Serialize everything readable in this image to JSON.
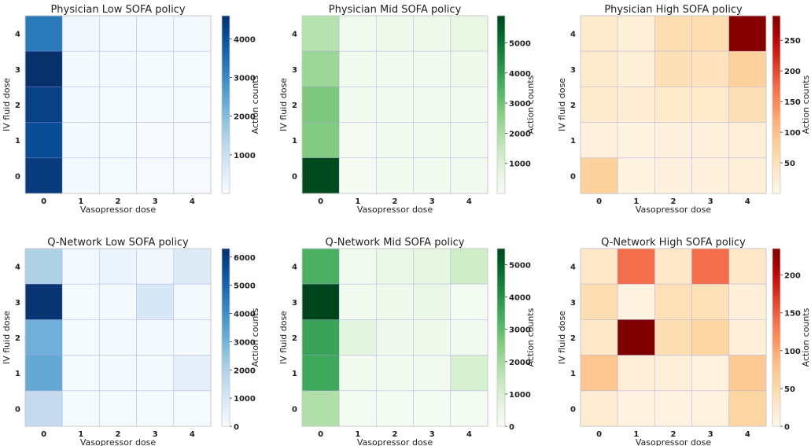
{
  "chart_data": [
    {
      "type": "heatmap",
      "title": "Physician Low SOFA policy",
      "xlabel": "Vasopressor dose",
      "ylabel": "IV fluid dose",
      "x_categories": [
        "0",
        "1",
        "2",
        "3",
        "4"
      ],
      "y_categories": [
        "4",
        "3",
        "2",
        "1",
        "0"
      ],
      "colorbar_label": "Action counts",
      "colormap": "Blues",
      "vmin": 0,
      "vmax": 4600,
      "colorbar_ticks": [
        "1000",
        "2000",
        "3000",
        "4000"
      ],
      "values": [
        [
          3300,
          120,
          80,
          60,
          60
        ],
        [
          4600,
          80,
          60,
          40,
          40
        ],
        [
          4300,
          70,
          50,
          40,
          40
        ],
        [
          4100,
          60,
          40,
          30,
          30
        ],
        [
          4400,
          60,
          40,
          30,
          30
        ]
      ]
    },
    {
      "type": "heatmap",
      "title": "Physician Mid SOFA policy",
      "xlabel": "Vasopressor dose",
      "ylabel": "IV fluid dose",
      "x_categories": [
        "0",
        "1",
        "2",
        "3",
        "4"
      ],
      "y_categories": [
        "4",
        "3",
        "2",
        "1",
        "0"
      ],
      "colorbar_label": "Action counts",
      "colormap": "Greens",
      "vmin": 0,
      "vmax": 5900,
      "colorbar_ticks": [
        "1000",
        "2000",
        "3000",
        "4000",
        "5000"
      ],
      "values": [
        [
          1800,
          200,
          300,
          350,
          600
        ],
        [
          2300,
          150,
          200,
          250,
          300
        ],
        [
          2800,
          150,
          200,
          200,
          250
        ],
        [
          2700,
          100,
          150,
          200,
          200
        ],
        [
          5800,
          100,
          150,
          150,
          200
        ]
      ]
    },
    {
      "type": "heatmap",
      "title": "Physician High SOFA policy",
      "xlabel": "Vasopressor dose",
      "ylabel": "IV fluid dose",
      "x_categories": [
        "0",
        "1",
        "2",
        "3",
        "4"
      ],
      "y_categories": [
        "4",
        "3",
        "2",
        "1",
        "0"
      ],
      "colorbar_label": "Action counts",
      "colormap": "OrRd",
      "vmin": 0,
      "vmax": 290,
      "colorbar_ticks": [
        "50",
        "100",
        "150",
        "200",
        "250"
      ],
      "values": [
        [
          30,
          20,
          55,
          55,
          285
        ],
        [
          30,
          20,
          50,
          45,
          75
        ],
        [
          30,
          25,
          35,
          35,
          50
        ],
        [
          15,
          10,
          15,
          15,
          20
        ],
        [
          75,
          10,
          15,
          15,
          20
        ]
      ]
    },
    {
      "type": "heatmap",
      "title": "Q-Network Low SOFA policy",
      "xlabel": "Vasopressor dose",
      "ylabel": "IV fluid dose",
      "x_categories": [
        "0",
        "1",
        "2",
        "3",
        "4"
      ],
      "y_categories": [
        "4",
        "3",
        "2",
        "1",
        "0"
      ],
      "colorbar_label": "Action counts",
      "colormap": "Blues",
      "vmin": 0,
      "vmax": 6300,
      "colorbar_ticks": [
        "0",
        "1000",
        "2000",
        "3000",
        "4000",
        "5000",
        "6000"
      ],
      "values": [
        [
          2000,
          100,
          300,
          150,
          800
        ],
        [
          6200,
          50,
          100,
          1000,
          100
        ],
        [
          3100,
          50,
          100,
          100,
          100
        ],
        [
          3300,
          50,
          100,
          100,
          600
        ],
        [
          1600,
          50,
          50,
          50,
          50
        ]
      ]
    },
    {
      "type": "heatmap",
      "title": "Q-Network Mid SOFA policy",
      "xlabel": "Vasopressor dose",
      "ylabel": "IV fluid dose",
      "x_categories": [
        "0",
        "1",
        "2",
        "3",
        "4"
      ],
      "y_categories": [
        "4",
        "3",
        "2",
        "1",
        "0"
      ],
      "colorbar_label": "Action counts",
      "colormap": "Greens",
      "vmin": 0,
      "vmax": 5500,
      "colorbar_ticks": [
        "0",
        "1000",
        "2000",
        "3000",
        "4000",
        "5000"
      ],
      "values": [
        [
          3300,
          200,
          450,
          600,
          1200
        ],
        [
          5500,
          150,
          300,
          450,
          100
        ],
        [
          3600,
          700,
          250,
          300,
          150
        ],
        [
          3500,
          200,
          150,
          200,
          1000
        ],
        [
          1800,
          100,
          100,
          100,
          100
        ]
      ]
    },
    {
      "type": "heatmap",
      "title": "Q-Network High SOFA policy",
      "xlabel": "Vasopressor dose",
      "ylabel": "IV fluid dose",
      "x_categories": [
        "0",
        "1",
        "2",
        "3",
        "4"
      ],
      "y_categories": [
        "4",
        "3",
        "2",
        "1",
        "0"
      ],
      "colorbar_label": "Action counts",
      "colormap": "OrRd",
      "vmin": 0,
      "vmax": 235,
      "colorbar_ticks": [
        "0",
        "50",
        "100",
        "150",
        "200"
      ],
      "values": [
        [
          30,
          140,
          30,
          140,
          30
        ],
        [
          45,
          10,
          40,
          40,
          15
        ],
        [
          30,
          235,
          45,
          55,
          15
        ],
        [
          75,
          15,
          15,
          10,
          70
        ],
        [
          20,
          10,
          10,
          10,
          55
        ]
      ]
    }
  ],
  "colors": {
    "Blues": [
      "#f7fbff",
      "#deebf7",
      "#c6dbef",
      "#9ecae1",
      "#6baed6",
      "#4292c6",
      "#2171b5",
      "#08519c",
      "#08306b"
    ],
    "Greens": [
      "#f7fcf5",
      "#e5f5e0",
      "#c7e9c0",
      "#a1d99b",
      "#74c476",
      "#41ab5d",
      "#238b45",
      "#006d2c",
      "#00441b"
    ],
    "OrRd": [
      "#fff7ec",
      "#fee8c8",
      "#fdd49e",
      "#fdbb84",
      "#fc8d59",
      "#ef6548",
      "#d7301f",
      "#b30000",
      "#7f0000"
    ]
  }
}
